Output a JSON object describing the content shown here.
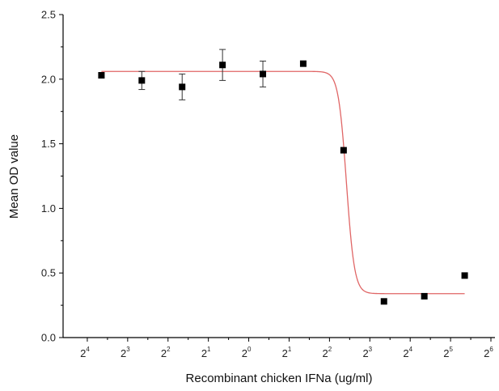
{
  "chart_data": {
    "type": "scatter",
    "title": "",
    "xlabel": "Recombinant chicken IFNa (ug/ml)",
    "ylabel": "Mean OD value",
    "ylim": [
      0,
      2.5
    ],
    "y_ticks": [
      "0.0",
      "0.5",
      "1.0",
      "1.5",
      "2.0",
      "2.5"
    ],
    "x_ticks": [
      {
        "base": "2",
        "exp": "4"
      },
      {
        "base": "2",
        "exp": "3"
      },
      {
        "base": "2",
        "exp": "2"
      },
      {
        "base": "2",
        "exp": "1"
      },
      {
        "base": "2",
        "exp": "0"
      },
      {
        "base": "2",
        "exp": "1"
      },
      {
        "base": "2",
        "exp": "2"
      },
      {
        "base": "2",
        "exp": "3"
      },
      {
        "base": "2",
        "exp": "4"
      },
      {
        "base": "2",
        "exp": "5"
      },
      {
        "base": "2",
        "exp": "6"
      }
    ],
    "x_tick_positions": [
      0,
      1,
      2,
      3,
      4,
      5,
      6,
      7,
      8,
      9,
      10
    ],
    "xlim": [
      -0.6,
      10.1
    ],
    "grid": false,
    "points": [
      {
        "x": 0.35,
        "y": 2.03,
        "err": 0.0
      },
      {
        "x": 1.35,
        "y": 1.99,
        "err": 0.07
      },
      {
        "x": 2.35,
        "y": 1.94,
        "err": 0.1
      },
      {
        "x": 3.35,
        "y": 2.11,
        "err": 0.12
      },
      {
        "x": 4.35,
        "y": 2.04,
        "err": 0.1
      },
      {
        "x": 5.35,
        "y": 2.12,
        "err": 0.0
      },
      {
        "x": 6.35,
        "y": 1.45,
        "err": 0.0
      },
      {
        "x": 7.35,
        "y": 0.28,
        "err": 0.0
      },
      {
        "x": 8.35,
        "y": 0.32,
        "err": 0.0
      },
      {
        "x": 9.35,
        "y": 0.48,
        "err": 0.0
      }
    ],
    "fit": {
      "type": "sigmoid",
      "top": 2.06,
      "bottom": 0.34,
      "mid_x": 6.42,
      "slope": 10,
      "x_range": [
        0.35,
        9.35
      ],
      "color": "#e06666"
    },
    "marker_color": "#000000"
  }
}
